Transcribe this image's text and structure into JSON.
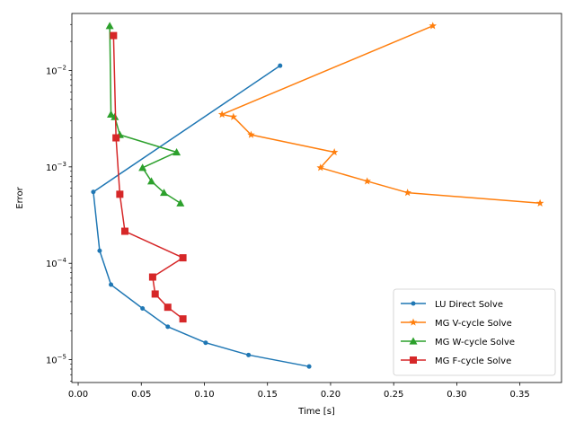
{
  "chart_data": {
    "type": "line",
    "title": "",
    "xlabel": "Time [s]",
    "ylabel": "Error",
    "xscale": "linear",
    "yscale": "log",
    "xlim": [
      -0.005,
      0.383
    ],
    "ylim": [
      5.8e-06,
      0.039
    ],
    "xticks": [
      0.0,
      0.05,
      0.1,
      0.15,
      0.2,
      0.25,
      0.3,
      0.35
    ],
    "xtick_labels": [
      "0.00",
      "0.05",
      "0.10",
      "0.15",
      "0.20",
      "0.25",
      "0.30",
      "0.35"
    ],
    "yticks": [
      {
        "value": 1e-05,
        "base": "10",
        "exp": "−5"
      },
      {
        "value": 0.0001,
        "base": "10",
        "exp": "−4"
      },
      {
        "value": 0.001,
        "base": "10",
        "exp": "−3"
      },
      {
        "value": 0.01,
        "base": "10",
        "exp": "−2"
      }
    ],
    "grid": false,
    "legend_position": "lower-right",
    "series": [
      {
        "name": "LU Direct Solve",
        "color": "#1f77b4",
        "marker": "circle",
        "x": [
          0.16,
          0.012,
          0.017,
          0.026,
          0.051,
          0.071,
          0.101,
          0.135,
          0.183
        ],
        "y": [
          0.0112,
          0.00055,
          0.000135,
          6e-05,
          3.4e-05,
          2.2e-05,
          1.5e-05,
          1.12e-05,
          8.5e-06
        ]
      },
      {
        "name": "MG V-cycle Solve",
        "color": "#ff7f0e",
        "marker": "star",
        "x": [
          0.281,
          0.114,
          0.123,
          0.137,
          0.203,
          0.192,
          0.229,
          0.261,
          0.366
        ],
        "y": [
          0.029,
          0.0035,
          0.0033,
          0.00215,
          0.00142,
          0.00098,
          0.00071,
          0.00054,
          0.00042
        ]
      },
      {
        "name": "MG W-cycle Solve",
        "color": "#2ca02c",
        "marker": "triangle",
        "x": [
          0.025,
          0.026,
          0.029,
          0.033,
          0.078,
          0.051,
          0.058,
          0.068,
          0.081
        ],
        "y": [
          0.029,
          0.0035,
          0.0033,
          0.00215,
          0.00142,
          0.00098,
          0.00071,
          0.00054,
          0.00042
        ]
      },
      {
        "name": "MG F-cycle Solve",
        "color": "#d62728",
        "marker": "square",
        "x": [
          0.028,
          0.03,
          0.033,
          0.037,
          0.083,
          0.059,
          0.061,
          0.071,
          0.083
        ],
        "y": [
          0.023,
          0.002,
          0.00052,
          0.000215,
          0.000114,
          7.2e-05,
          4.8e-05,
          3.5e-05,
          2.65e-05
        ]
      }
    ]
  }
}
